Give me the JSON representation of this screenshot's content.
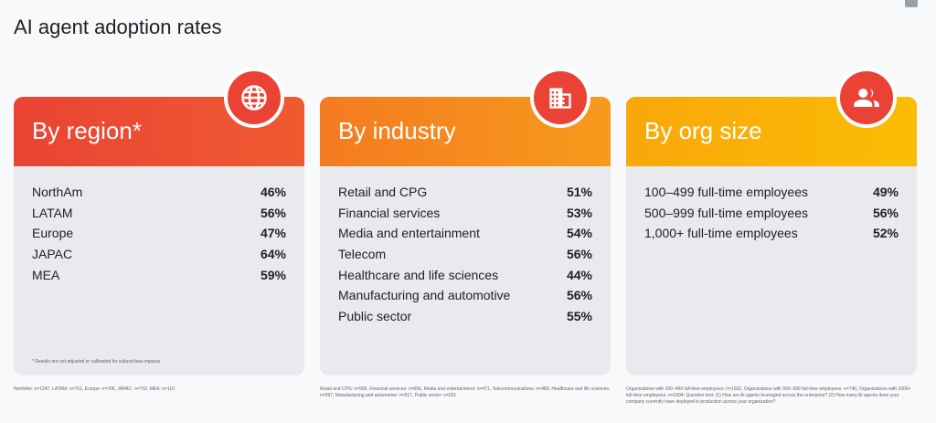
{
  "title": "AI agent adoption rates",
  "cards": [
    {
      "heading": "By region*",
      "icon": "globe-icon",
      "rows": [
        {
          "label": "NorthAm",
          "value": "46%"
        },
        {
          "label": "LATAM",
          "value": "56%"
        },
        {
          "label": "Europe",
          "value": "47%"
        },
        {
          "label": "JAPAC",
          "value": "64%"
        },
        {
          "label": "MEA",
          "value": "59%"
        }
      ],
      "note": "* Results are not adjusted or calibrated for cultural bias impacts",
      "footnote": "NorthAm: n=1247, LATAM: n=701, Europe: n=706, JAPAC: n=702, MEA: n=110"
    },
    {
      "heading": "By industry",
      "icon": "building-icon",
      "rows": [
        {
          "label": "Retail and CPG",
          "value": "51%"
        },
        {
          "label": "Financial services",
          "value": "53%"
        },
        {
          "label": "Media and entertainment",
          "value": "54%"
        },
        {
          "label": "Telecom",
          "value": "56%"
        },
        {
          "label": "Healthcare and life sciences",
          "value": "44%"
        },
        {
          "label": "Manufacturing and automotive",
          "value": "56%"
        },
        {
          "label": "Public sector",
          "value": "55%"
        }
      ],
      "footnote": "Retail and CPG: n=585, Financial services: n=556, Media and entertainment: n=471, Telecommunications: n=489, Healthcare and life sciences: n=597, Manufacturing and automotive: n=517, Public sector: n=251"
    },
    {
      "heading": "By org size",
      "icon": "people-icon",
      "rows": [
        {
          "label": "100–499 full-time employees",
          "value": "49%"
        },
        {
          "label": "500–999 full-time employees",
          "value": "56%"
        },
        {
          "label": "1,000+ full-time employees",
          "value": "52%"
        }
      ],
      "footnote": "Organizations with 100–499 full-time employees: n=1032, Organizations with 500–999 full-time employees: n=740, Organizations with 1000+ full-time employees: n=1694; Question text: (1) How are AI agents leveraged across the enterprise? (2) How many AI agents does your company currently have deployed in production across your organization?"
    }
  ]
}
